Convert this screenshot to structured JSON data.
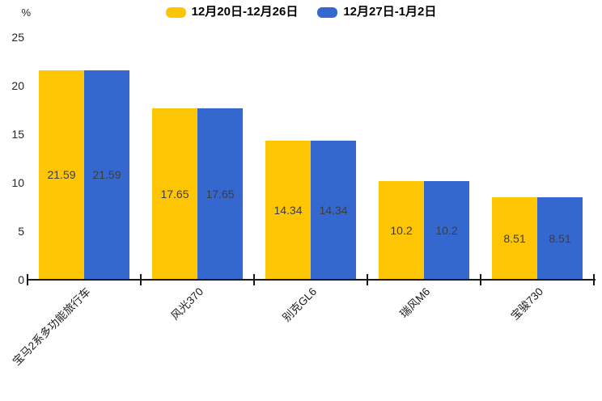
{
  "legend": {
    "items": [
      {
        "label": "12月20日-12月26日",
        "color": "#FDC504"
      },
      {
        "label": "12月27日-1月2日",
        "color": "#3568CE"
      }
    ]
  },
  "axis": {
    "unit_label": "%",
    "y_ticks": [
      0,
      5,
      10,
      15,
      20,
      25
    ]
  },
  "chart_data": {
    "type": "bar",
    "title": "",
    "xlabel": "",
    "ylabel": "%",
    "ylim": [
      0,
      25
    ],
    "grid": false,
    "legend_position": "top",
    "categories": [
      "宝马2系多功能旅行车",
      "风光370",
      "别克GL6",
      "瑞风M6",
      "宝骏730"
    ],
    "series": [
      {
        "name": "12月20日-12月26日",
        "color": "#FDC504",
        "values": [
          21.59,
          17.65,
          14.34,
          10.2,
          8.51
        ],
        "value_labels": [
          "21.59",
          "17.65",
          "14.34",
          "10.2",
          "8.51"
        ]
      },
      {
        "name": "12月27日-1月2日",
        "color": "#3568CE",
        "values": [
          21.59,
          17.65,
          14.34,
          10.2,
          8.51
        ],
        "value_labels": [
          "21.59",
          "17.65",
          "14.34",
          "10.2",
          "8.51"
        ]
      }
    ],
    "value_labels_shown": true
  },
  "colors": {
    "background": "#FFFFFF",
    "axis_line": "#1A1A1A",
    "tick_text": "#262626",
    "value_label_text": "#3D3D3D"
  }
}
